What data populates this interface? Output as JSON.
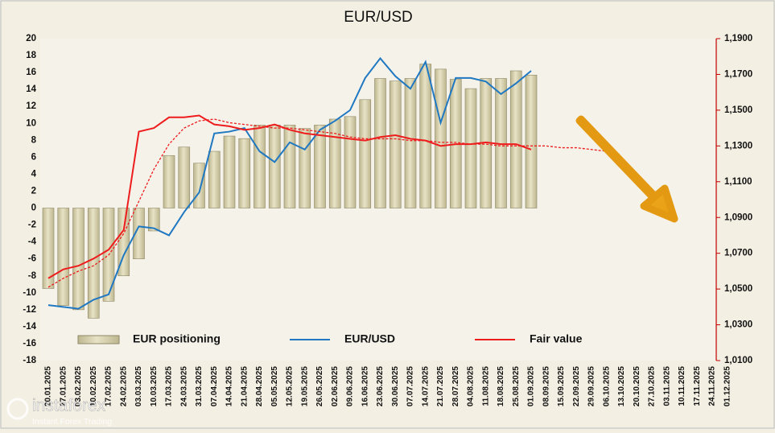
{
  "chart_data": {
    "type": "bar_line",
    "title": "EUR/USD",
    "categories": [
      "20.01.2025",
      "27.01.2025",
      "03.02.2025",
      "10.02.2025",
      "17.02.2025",
      "24.02.2025",
      "03.03.2025",
      "10.03.2025",
      "17.03.2025",
      "24.03.2025",
      "31.03.2025",
      "07.04.2025",
      "14.04.2025",
      "21.04.2025",
      "28.04.2025",
      "05.05.2025",
      "12.05.2025",
      "19.05.2025",
      "26.05.2025",
      "02.06.2025",
      "09.06.2025",
      "16.06.2025",
      "23.06.2025",
      "30.06.2025",
      "07.07.2025",
      "14.07.2025",
      "21.07.2025",
      "28.07.2025",
      "04.08.2025",
      "11.08.2025",
      "18.08.2025",
      "25.08.2025",
      "01.09.2025",
      "08.09.2025",
      "15.09.2025",
      "22.09.2025",
      "29.09.2025",
      "06.10.2025",
      "13.10.2025",
      "20.10.2025",
      "27.10.2025",
      "03.11.2025",
      "10.11.2025",
      "17.11.2025",
      "24.11.2025",
      "01.12.2025"
    ],
    "series": [
      {
        "name": "EUR positioning",
        "type": "bar",
        "color": "#bdb68f",
        "values": [
          -9.5,
          -11.5,
          -12,
          -13,
          -11,
          -8,
          -6,
          -2.7,
          6.2,
          7.2,
          5.3,
          6.7,
          8.5,
          8.2,
          9.8,
          9.8,
          9.8,
          9.4,
          9.8,
          10.5,
          10.8,
          12.8,
          15.3,
          15.0,
          15.3,
          17.0,
          16.4,
          15.2,
          14.1,
          15.3,
          15.3,
          16.2,
          15.7,
          null,
          null,
          null,
          null,
          null,
          null,
          null,
          null,
          null,
          null,
          null,
          null,
          null
        ]
      },
      {
        "name": "EUR/USD",
        "type": "line",
        "axis": "y2",
        "color": "#1f78c1",
        "values": [
          1.041,
          1.04,
          1.039,
          1.044,
          1.047,
          1.069,
          1.085,
          1.084,
          1.08,
          1.093,
          1.104,
          1.137,
          1.138,
          1.14,
          1.127,
          1.121,
          1.132,
          1.128,
          1.139,
          1.144,
          1.15,
          1.168,
          1.179,
          1.169,
          1.162,
          1.177,
          1.143,
          1.168,
          1.168,
          1.166,
          1.159,
          1.165,
          1.172,
          null,
          null,
          null,
          null,
          null,
          null,
          null,
          null,
          null,
          null,
          null,
          null,
          null
        ]
      },
      {
        "name": "Fair value",
        "type": "line",
        "axis": "y2",
        "color": "#ee1c1c",
        "values": [
          1.056,
          1.061,
          1.063,
          1.067,
          1.072,
          1.083,
          1.138,
          1.14,
          1.146,
          1.146,
          1.147,
          1.142,
          1.141,
          1.139,
          1.14,
          1.142,
          1.139,
          1.137,
          1.136,
          1.135,
          1.134,
          1.133,
          1.135,
          1.136,
          1.134,
          1.133,
          1.13,
          1.131,
          1.131,
          1.132,
          1.131,
          1.131,
          1.128,
          null,
          null,
          null,
          null,
          null,
          null,
          null,
          null,
          null,
          null,
          null,
          null,
          null
        ]
      },
      {
        "type": "line",
        "axis": "y2",
        "color": "#ee1c1c",
        "style": "dashed",
        "values": [
          1.051,
          1.056,
          1.06,
          1.063,
          1.069,
          1.081,
          1.099,
          1.117,
          1.131,
          1.14,
          1.144,
          1.145,
          1.143,
          1.142,
          1.141,
          1.14,
          1.14,
          1.139,
          1.138,
          1.137,
          1.135,
          1.134,
          1.134,
          1.134,
          1.133,
          1.133,
          1.132,
          1.132,
          1.131,
          1.131,
          1.13,
          1.13,
          1.13,
          1.13,
          1.129,
          1.129,
          1.128,
          1.127,
          null,
          null,
          null,
          null,
          null,
          null,
          null,
          null
        ]
      }
    ],
    "ylim": [
      -18,
      20
    ],
    "yticks": [
      -18,
      -16,
      -14,
      -12,
      -10,
      -8,
      -6,
      -4,
      -2,
      0,
      2,
      4,
      6,
      8,
      10,
      12,
      14,
      16,
      18,
      20
    ],
    "y2lim": [
      1.01,
      1.19
    ],
    "y2ticks": [
      {
        "value": 1.01,
        "label": "1,0100"
      },
      {
        "value": 1.03,
        "label": "1,0300"
      },
      {
        "value": 1.05,
        "label": "1,0500"
      },
      {
        "value": 1.07,
        "label": "1,0700"
      },
      {
        "value": 1.09,
        "label": "1,0900"
      },
      {
        "value": 1.11,
        "label": "1,1100"
      },
      {
        "value": 1.13,
        "label": "1,1300"
      },
      {
        "value": 1.15,
        "label": "1,1500"
      },
      {
        "value": 1.17,
        "label": "1,1700"
      },
      {
        "value": 1.19,
        "label": "1,1900"
      }
    ],
    "grid": false,
    "legend": "bottom"
  },
  "watermark": {
    "name": "instaforex",
    "tagline": "Instant Forex Trading"
  }
}
